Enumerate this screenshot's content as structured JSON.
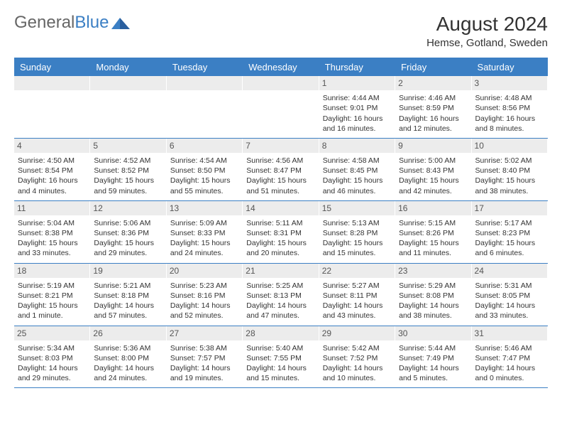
{
  "logo": {
    "text1": "General",
    "text2": "Blue"
  },
  "title": "August 2024",
  "location": "Hemse, Gotland, Sweden",
  "weekdays": [
    "Sunday",
    "Monday",
    "Tuesday",
    "Wednesday",
    "Thursday",
    "Friday",
    "Saturday"
  ],
  "colors": {
    "header_bar": "#3b7fc4",
    "day_number_bg": "#ececec",
    "text": "#333333",
    "logo_gray": "#666666",
    "logo_blue": "#3b7fc4"
  },
  "weeks": [
    [
      {
        "day": "",
        "sunrise": "",
        "sunset": "",
        "daylight": ""
      },
      {
        "day": "",
        "sunrise": "",
        "sunset": "",
        "daylight": ""
      },
      {
        "day": "",
        "sunrise": "",
        "sunset": "",
        "daylight": ""
      },
      {
        "day": "",
        "sunrise": "",
        "sunset": "",
        "daylight": ""
      },
      {
        "day": "1",
        "sunrise": "Sunrise: 4:44 AM",
        "sunset": "Sunset: 9:01 PM",
        "daylight": "Daylight: 16 hours and 16 minutes."
      },
      {
        "day": "2",
        "sunrise": "Sunrise: 4:46 AM",
        "sunset": "Sunset: 8:59 PM",
        "daylight": "Daylight: 16 hours and 12 minutes."
      },
      {
        "day": "3",
        "sunrise": "Sunrise: 4:48 AM",
        "sunset": "Sunset: 8:56 PM",
        "daylight": "Daylight: 16 hours and 8 minutes."
      }
    ],
    [
      {
        "day": "4",
        "sunrise": "Sunrise: 4:50 AM",
        "sunset": "Sunset: 8:54 PM",
        "daylight": "Daylight: 16 hours and 4 minutes."
      },
      {
        "day": "5",
        "sunrise": "Sunrise: 4:52 AM",
        "sunset": "Sunset: 8:52 PM",
        "daylight": "Daylight: 15 hours and 59 minutes."
      },
      {
        "day": "6",
        "sunrise": "Sunrise: 4:54 AM",
        "sunset": "Sunset: 8:50 PM",
        "daylight": "Daylight: 15 hours and 55 minutes."
      },
      {
        "day": "7",
        "sunrise": "Sunrise: 4:56 AM",
        "sunset": "Sunset: 8:47 PM",
        "daylight": "Daylight: 15 hours and 51 minutes."
      },
      {
        "day": "8",
        "sunrise": "Sunrise: 4:58 AM",
        "sunset": "Sunset: 8:45 PM",
        "daylight": "Daylight: 15 hours and 46 minutes."
      },
      {
        "day": "9",
        "sunrise": "Sunrise: 5:00 AM",
        "sunset": "Sunset: 8:43 PM",
        "daylight": "Daylight: 15 hours and 42 minutes."
      },
      {
        "day": "10",
        "sunrise": "Sunrise: 5:02 AM",
        "sunset": "Sunset: 8:40 PM",
        "daylight": "Daylight: 15 hours and 38 minutes."
      }
    ],
    [
      {
        "day": "11",
        "sunrise": "Sunrise: 5:04 AM",
        "sunset": "Sunset: 8:38 PM",
        "daylight": "Daylight: 15 hours and 33 minutes."
      },
      {
        "day": "12",
        "sunrise": "Sunrise: 5:06 AM",
        "sunset": "Sunset: 8:36 PM",
        "daylight": "Daylight: 15 hours and 29 minutes."
      },
      {
        "day": "13",
        "sunrise": "Sunrise: 5:09 AM",
        "sunset": "Sunset: 8:33 PM",
        "daylight": "Daylight: 15 hours and 24 minutes."
      },
      {
        "day": "14",
        "sunrise": "Sunrise: 5:11 AM",
        "sunset": "Sunset: 8:31 PM",
        "daylight": "Daylight: 15 hours and 20 minutes."
      },
      {
        "day": "15",
        "sunrise": "Sunrise: 5:13 AM",
        "sunset": "Sunset: 8:28 PM",
        "daylight": "Daylight: 15 hours and 15 minutes."
      },
      {
        "day": "16",
        "sunrise": "Sunrise: 5:15 AM",
        "sunset": "Sunset: 8:26 PM",
        "daylight": "Daylight: 15 hours and 11 minutes."
      },
      {
        "day": "17",
        "sunrise": "Sunrise: 5:17 AM",
        "sunset": "Sunset: 8:23 PM",
        "daylight": "Daylight: 15 hours and 6 minutes."
      }
    ],
    [
      {
        "day": "18",
        "sunrise": "Sunrise: 5:19 AM",
        "sunset": "Sunset: 8:21 PM",
        "daylight": "Daylight: 15 hours and 1 minute."
      },
      {
        "day": "19",
        "sunrise": "Sunrise: 5:21 AM",
        "sunset": "Sunset: 8:18 PM",
        "daylight": "Daylight: 14 hours and 57 minutes."
      },
      {
        "day": "20",
        "sunrise": "Sunrise: 5:23 AM",
        "sunset": "Sunset: 8:16 PM",
        "daylight": "Daylight: 14 hours and 52 minutes."
      },
      {
        "day": "21",
        "sunrise": "Sunrise: 5:25 AM",
        "sunset": "Sunset: 8:13 PM",
        "daylight": "Daylight: 14 hours and 47 minutes."
      },
      {
        "day": "22",
        "sunrise": "Sunrise: 5:27 AM",
        "sunset": "Sunset: 8:11 PM",
        "daylight": "Daylight: 14 hours and 43 minutes."
      },
      {
        "day": "23",
        "sunrise": "Sunrise: 5:29 AM",
        "sunset": "Sunset: 8:08 PM",
        "daylight": "Daylight: 14 hours and 38 minutes."
      },
      {
        "day": "24",
        "sunrise": "Sunrise: 5:31 AM",
        "sunset": "Sunset: 8:05 PM",
        "daylight": "Daylight: 14 hours and 33 minutes."
      }
    ],
    [
      {
        "day": "25",
        "sunrise": "Sunrise: 5:34 AM",
        "sunset": "Sunset: 8:03 PM",
        "daylight": "Daylight: 14 hours and 29 minutes."
      },
      {
        "day": "26",
        "sunrise": "Sunrise: 5:36 AM",
        "sunset": "Sunset: 8:00 PM",
        "daylight": "Daylight: 14 hours and 24 minutes."
      },
      {
        "day": "27",
        "sunrise": "Sunrise: 5:38 AM",
        "sunset": "Sunset: 7:57 PM",
        "daylight": "Daylight: 14 hours and 19 minutes."
      },
      {
        "day": "28",
        "sunrise": "Sunrise: 5:40 AM",
        "sunset": "Sunset: 7:55 PM",
        "daylight": "Daylight: 14 hours and 15 minutes."
      },
      {
        "day": "29",
        "sunrise": "Sunrise: 5:42 AM",
        "sunset": "Sunset: 7:52 PM",
        "daylight": "Daylight: 14 hours and 10 minutes."
      },
      {
        "day": "30",
        "sunrise": "Sunrise: 5:44 AM",
        "sunset": "Sunset: 7:49 PM",
        "daylight": "Daylight: 14 hours and 5 minutes."
      },
      {
        "day": "31",
        "sunrise": "Sunrise: 5:46 AM",
        "sunset": "Sunset: 7:47 PM",
        "daylight": "Daylight: 14 hours and 0 minutes."
      }
    ]
  ]
}
